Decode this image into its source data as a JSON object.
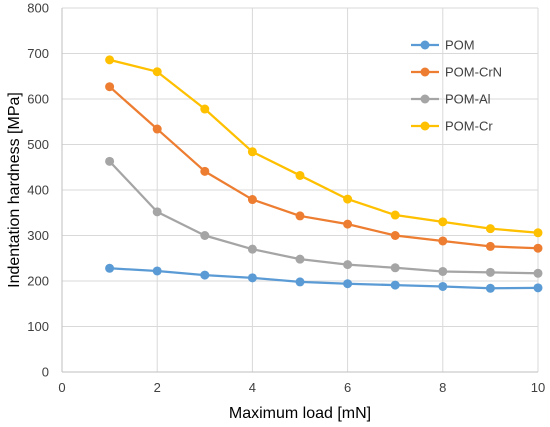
{
  "chart_data": {
    "type": "line",
    "title": "",
    "xlabel": "Maximum load [mN]",
    "ylabel": "Indentation hardness [MPa]",
    "xlim": [
      0,
      10
    ],
    "ylim": [
      0,
      800
    ],
    "xticks": [
      0,
      2,
      4,
      6,
      8,
      10
    ],
    "yticks": [
      0,
      100,
      200,
      300,
      400,
      500,
      600,
      700,
      800
    ],
    "grid": true,
    "legend_position": "top-right",
    "x": [
      1,
      2,
      3,
      4,
      5,
      6,
      7,
      8,
      9,
      10
    ],
    "series": [
      {
        "name": "POM",
        "color": "#5B9BD5",
        "values": [
          228,
          222,
          213,
          207,
          198,
          194,
          191,
          188,
          184,
          185
        ]
      },
      {
        "name": "POM-CrN",
        "color": "#ED7D31",
        "values": [
          627,
          534,
          441,
          379,
          343,
          325,
          300,
          288,
          276,
          272
        ]
      },
      {
        "name": "POM-Al",
        "color": "#A5A5A5",
        "values": [
          463,
          352,
          300,
          270,
          248,
          236,
          229,
          221,
          219,
          217
        ]
      },
      {
        "name": "POM-Cr",
        "color": "#FFC000",
        "values": [
          686,
          660,
          578,
          484,
          432,
          380,
          345,
          330,
          315,
          306
        ]
      }
    ]
  }
}
